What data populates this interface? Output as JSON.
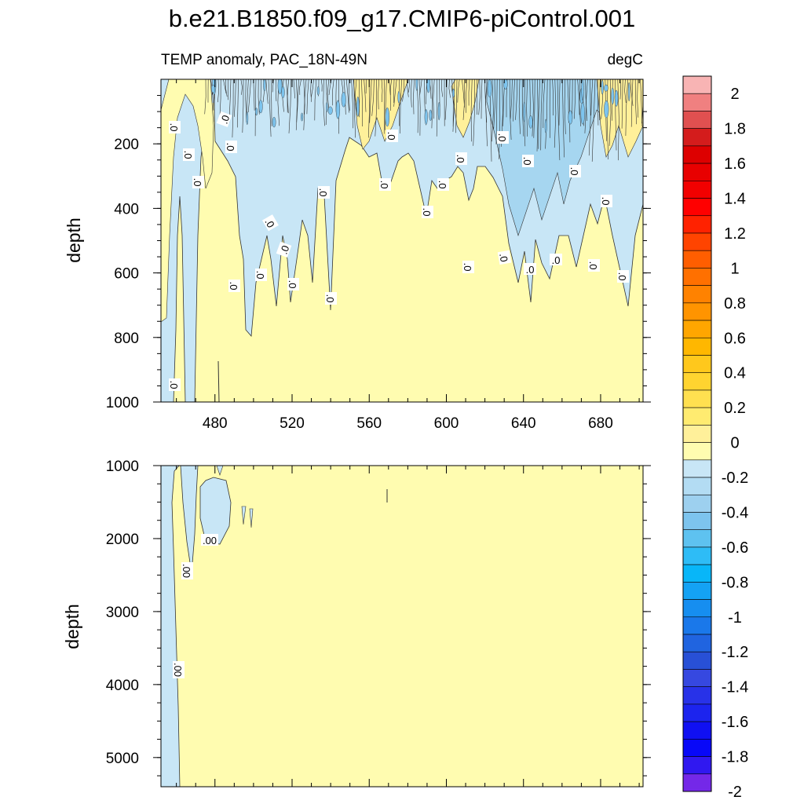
{
  "chart_data": {
    "type": "heatmap",
    "title": "b.e21.B1850.f09_g17.CMIP6-piControl.001",
    "subtitle_left": "TEMP anomaly, PAC_18N-49N",
    "subtitle_right": "degC",
    "ylabel": "depth",
    "x_range": [
      452,
      702
    ],
    "x_ticks": [
      "480",
      "520",
      "560",
      "600",
      "640",
      "680"
    ],
    "panels": [
      {
        "name": "upper",
        "ylim": [
          0,
          1000
        ],
        "y_ticks": [
          "200",
          "400",
          "600",
          "800",
          "1000"
        ],
        "contour_labels": [
          ".0"
        ]
      },
      {
        "name": "lower",
        "ylim": [
          1000,
          5400
        ],
        "y_ticks": [
          "1000",
          "2000",
          "3000",
          "4000",
          "5000"
        ],
        "contour_labels": [
          ".00"
        ]
      }
    ],
    "colorbar": {
      "levels": [
        "2",
        "1.8",
        "1.6",
        "1.4",
        "1.2",
        "1",
        "0.8",
        "0.6",
        "0.4",
        "0.2",
        "0",
        "-0.2",
        "-0.4",
        "-0.6",
        "-0.8",
        "-1",
        "-1.2",
        "-1.4",
        "-1.6",
        "-1.8",
        "-2"
      ],
      "colors": [
        "#f8b4b4",
        "#f08080",
        "#e05050",
        "#d41c1c",
        "#dd0000",
        "#e80000",
        "#f20000",
        "#ff0000",
        "#ff2200",
        "#ff4400",
        "#ff5e00",
        "#ff7000",
        "#ff8200",
        "#ff9400",
        "#ffa600",
        "#ffb700",
        "#ffc81c",
        "#ffd430",
        "#ffe050",
        "#ffeb70",
        "#fff09a",
        "#fffcb0",
        "#c8e6f6",
        "#b3dcf3",
        "#9dd0ef",
        "#7dc4ee",
        "#5ec2f0",
        "#2ebcf6",
        "#08b6f8",
        "#14a2f4",
        "#168ef0",
        "#1a78ea",
        "#2064e0",
        "#2850d6",
        "#3648e0",
        "#2832e8",
        "#1c24ee",
        "#1010f2",
        "#0808f8",
        "#3018f0",
        "#7428e8"
      ]
    },
    "colors": {
      "positive_fill": "#fffcb0",
      "negative_fill": "#c8e6f6",
      "deep_negative_fill": "#a6d6f0",
      "contour": "#333333"
    }
  }
}
